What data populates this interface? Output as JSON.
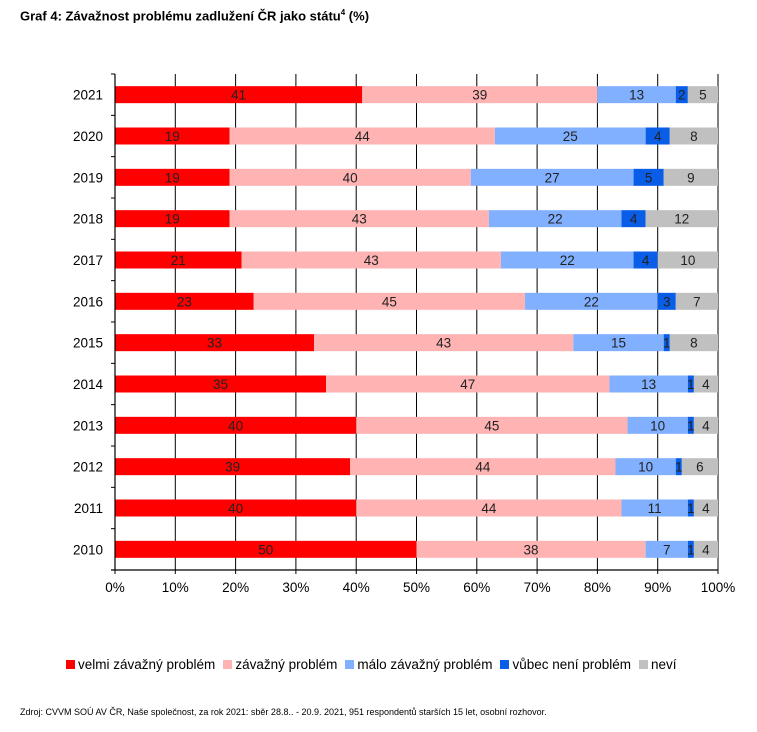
{
  "title": "Graf 4: Závažnost problému zadlužení ČR jako státu",
  "title_sup": "4",
  "title_suffix": " (%)",
  "source": "Zdroj: CVVM SOÚ AV ČR, Naše společnost, za rok 2021: sběr 28.8.. - 20.9. 2021, 951 respondentů starších 15 let, osobní rozhovor.",
  "chart_data": {
    "type": "bar",
    "orientation": "horizontal",
    "stacked": "percent",
    "categories": [
      "2021",
      "2020",
      "2019",
      "2018",
      "2017",
      "2016",
      "2015",
      "2014",
      "2013",
      "2012",
      "2011",
      "2010"
    ],
    "series": [
      {
        "name": "velmi závažný problém",
        "color": "#ff0000",
        "values": [
          41,
          19,
          19,
          19,
          21,
          23,
          33,
          35,
          40,
          39,
          40,
          50
        ]
      },
      {
        "name": "závažný problém",
        "color": "#ffb3b3",
        "values": [
          39,
          44,
          40,
          43,
          43,
          45,
          43,
          47,
          45,
          44,
          44,
          38
        ]
      },
      {
        "name": "málo závažný problém",
        "color": "#80b0ff",
        "values": [
          13,
          25,
          27,
          22,
          22,
          22,
          15,
          13,
          10,
          10,
          11,
          7
        ]
      },
      {
        "name": "vůbec není problém",
        "color": "#0a5de6",
        "values": [
          2,
          4,
          5,
          4,
          4,
          3,
          1,
          1,
          1,
          1,
          1,
          1
        ]
      },
      {
        "name": "neví",
        "color": "#c0c0c0",
        "values": [
          5,
          8,
          9,
          12,
          10,
          7,
          8,
          4,
          4,
          6,
          4,
          4
        ]
      }
    ],
    "xlim": [
      0,
      100
    ],
    "xticks": [
      "0%",
      "10%",
      "20%",
      "30%",
      "40%",
      "50%",
      "60%",
      "70%",
      "80%",
      "90%",
      "100%"
    ],
    "grid": true,
    "legend_position": "bottom"
  }
}
